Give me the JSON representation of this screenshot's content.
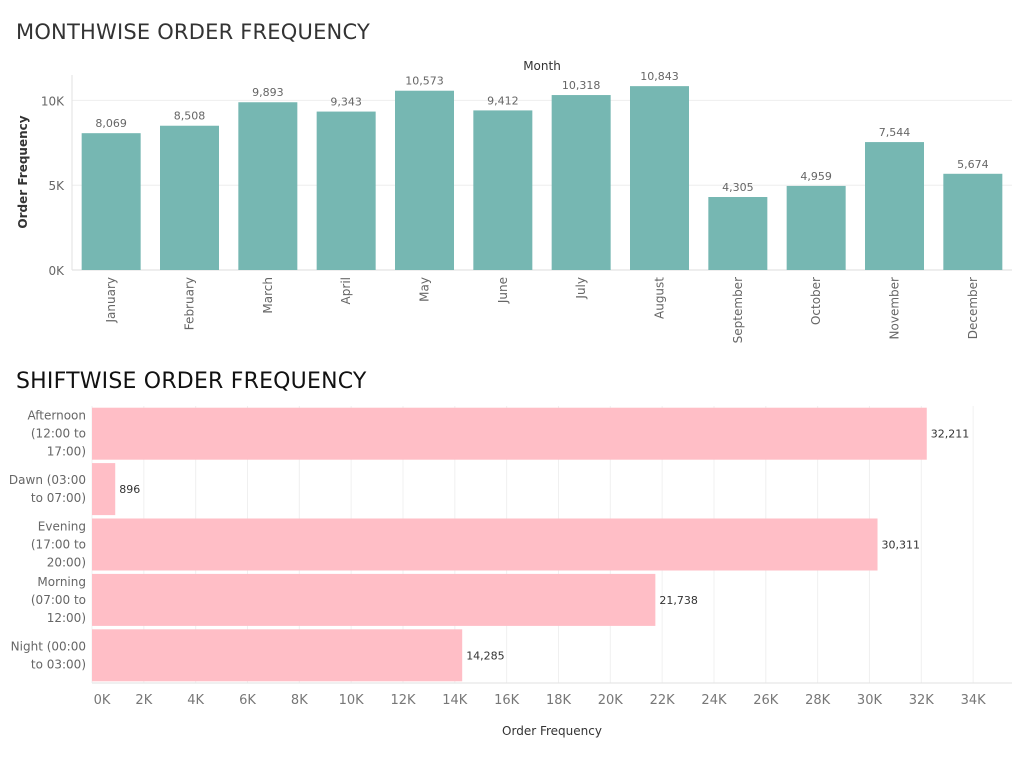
{
  "chart_data": [
    {
      "type": "bar",
      "title": "MONTHWISE ORDER FREQUENCY",
      "xlabel": "Month",
      "ylabel": "Order Frequency",
      "categories": [
        "January",
        "February",
        "March",
        "April",
        "May",
        "June",
        "July",
        "August",
        "September",
        "October",
        "November",
        "December"
      ],
      "values": [
        8069,
        8508,
        9893,
        9343,
        10573,
        9412,
        10318,
        10843,
        4305,
        4959,
        7544,
        5674
      ],
      "value_labels": [
        "8,069",
        "8,508",
        "9,893",
        "9,343",
        "10,573",
        "9,412",
        "10,318",
        "10,843",
        "4,305",
        "4,959",
        "7,544",
        "5,674"
      ],
      "yticks": [
        0,
        5000,
        10000
      ],
      "ytick_labels": [
        "0K",
        "5K",
        "10K"
      ],
      "ylim": [
        0,
        11500
      ],
      "color": "#76b7b2",
      "grid": true
    },
    {
      "type": "bar",
      "orientation": "horizontal",
      "title": "SHIFTWISE ORDER FREQUENCY",
      "xlabel": "Order Frequency",
      "ylabel": "",
      "categories": [
        [
          "Afternoon",
          "(12:00 to",
          "17:00)"
        ],
        [
          "Dawn (03:00",
          "to 07:00)"
        ],
        [
          "Evening",
          "(17:00 to",
          "20:00)"
        ],
        [
          "Morning",
          "(07:00 to",
          "12:00)"
        ],
        [
          "Night (00:00",
          "to 03:00)"
        ]
      ],
      "values": [
        32211,
        896,
        30311,
        21738,
        14285
      ],
      "value_labels": [
        "32,211",
        "896",
        "30,311",
        "21,738",
        "14,285"
      ],
      "xticks": [
        0,
        2000,
        4000,
        6000,
        8000,
        10000,
        12000,
        14000,
        16000,
        18000,
        20000,
        22000,
        24000,
        26000,
        28000,
        30000,
        32000,
        34000
      ],
      "xtick_labels": [
        "0K",
        "2K",
        "4K",
        "6K",
        "8K",
        "10K",
        "12K",
        "14K",
        "16K",
        "18K",
        "20K",
        "22K",
        "24K",
        "26K",
        "28K",
        "30K",
        "32K",
        "34K"
      ],
      "xlim": [
        0,
        35500
      ],
      "color": "#ffbec6",
      "grid": true
    }
  ]
}
